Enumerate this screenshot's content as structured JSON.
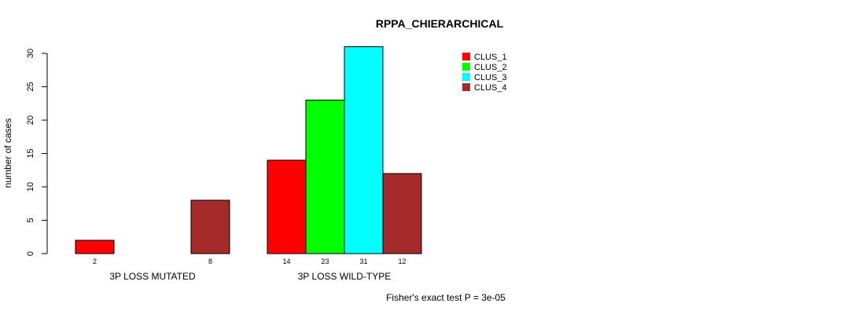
{
  "chart_data": {
    "type": "bar",
    "title": "RPPA_CHIERARCHICAL",
    "ylabel": "number of cases",
    "xlabel": "",
    "ylim": [
      0,
      30
    ],
    "yticks": [
      0,
      5,
      10,
      15,
      20,
      25,
      30
    ],
    "groups": [
      "3P LOSS MUTATED",
      "3P LOSS WILD-TYPE"
    ],
    "series": [
      {
        "name": "CLUS_1",
        "color": "#ff0000",
        "values": [
          2,
          14
        ]
      },
      {
        "name": "CLUS_2",
        "color": "#00ff00",
        "values": [
          0,
          23
        ]
      },
      {
        "name": "CLUS_3",
        "color": "#00ffff",
        "values": [
          0,
          31
        ]
      },
      {
        "name": "CLUS_4",
        "color": "#a52a2a",
        "values": [
          8,
          12
        ]
      }
    ],
    "bar_value_labels": [
      [
        "2",
        "",
        "",
        "8"
      ],
      [
        "14",
        "23",
        "31",
        "12"
      ]
    ],
    "legend_position": "top-right",
    "footnote": "Fisher's exact test P = 3e-05"
  }
}
